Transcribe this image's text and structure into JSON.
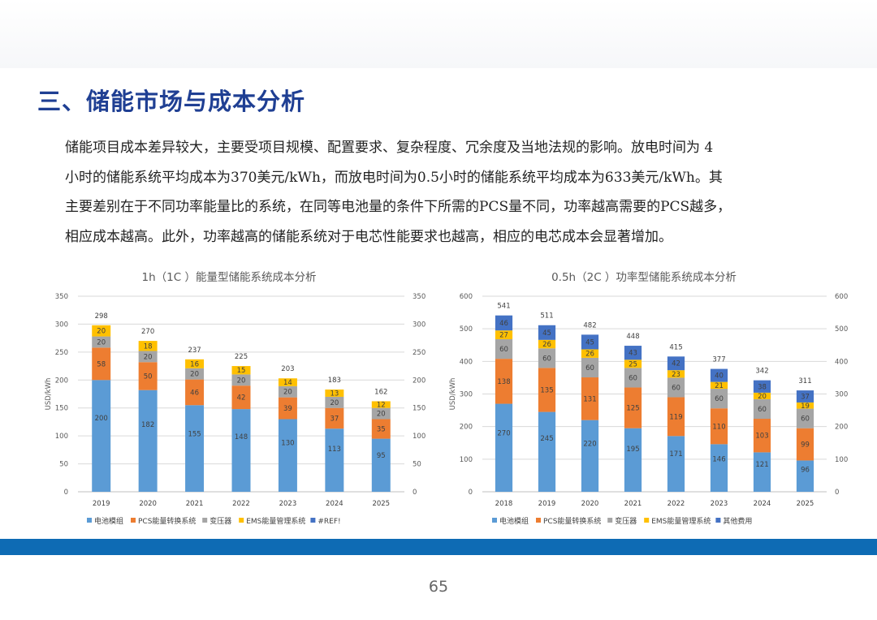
{
  "heading": "三、储能市场与成本分析",
  "paragraph": [
    "储能项目成本差异较大，主要受项目规模、配置要求、复杂程度、冗余度及当地法规的影响。放电时间为 4",
    "小时的储能系统平均成本为370美元/kWh，而放电时间为0.5小时的储能系统平均成本为633美元/kWh。其",
    "主要差别在于不同功率能量比的系统，在同等电池量的条件下所需的PCS量不同，功率越高需要的PCS越多，",
    "相应成本越高。此外，功率越高的储能系统对于电芯性能要求也越高，相应的电芯成本会显著增加。"
  ],
  "page_number": "65",
  "chart_data": [
    {
      "type": "bar",
      "stacked": true,
      "title": "1h（1C ）能量型储能系统成本分析",
      "ylabel": "USD/kWh",
      "ylim": [
        0,
        350
      ],
      "yticks": [
        0,
        50,
        100,
        150,
        200,
        250,
        300,
        350
      ],
      "secondary_axis": true,
      "grid": true,
      "legend": "bottom",
      "categories": [
        "2019",
        "2020",
        "2021",
        "2022",
        "2023",
        "2024",
        "2025"
      ],
      "series": [
        {
          "name": "电池模组",
          "color": "#5b9bd5",
          "values": [
            200,
            182,
            155,
            148,
            130,
            113,
            95
          ]
        },
        {
          "name": "PCS能量转换系统",
          "color": "#ed7d31",
          "values": [
            58,
            50,
            46,
            42,
            39,
            37,
            35
          ]
        },
        {
          "name": "变压器",
          "color": "#a5a5a5",
          "values": [
            20,
            20,
            20,
            20,
            20,
            20,
            20
          ]
        },
        {
          "name": "EMS能量管理系统",
          "color": "#ffc000",
          "values": [
            20,
            18,
            16,
            15,
            14,
            13,
            12
          ]
        },
        {
          "name": "#REF!",
          "color": "#4472c4",
          "values": [
            0,
            0,
            0,
            0,
            0,
            0,
            0
          ]
        }
      ],
      "totals": [
        298,
        270,
        237,
        225,
        203,
        183,
        162
      ]
    },
    {
      "type": "bar",
      "stacked": true,
      "title": "0.5h（2C ）功率型储能系统成本分析",
      "ylabel": "USD/kWh",
      "ylim": [
        0,
        600
      ],
      "yticks": [
        0,
        100,
        200,
        300,
        400,
        500,
        600
      ],
      "secondary_axis": true,
      "grid": true,
      "legend": "bottom",
      "categories": [
        "2018",
        "2019",
        "2020",
        "2021",
        "2022",
        "2023",
        "2024",
        "2025"
      ],
      "series": [
        {
          "name": "电池模组",
          "color": "#5b9bd5",
          "values": [
            270,
            245,
            220,
            195,
            171,
            146,
            121,
            96
          ]
        },
        {
          "name": "PCS能量转换系统",
          "color": "#ed7d31",
          "values": [
            138,
            135,
            131,
            125,
            119,
            110,
            103,
            99
          ]
        },
        {
          "name": "变压器",
          "color": "#a5a5a5",
          "values": [
            60,
            60,
            60,
            60,
            60,
            60,
            60,
            60
          ]
        },
        {
          "name": "EMS能量管理系统",
          "color": "#ffc000",
          "values": [
            27,
            26,
            26,
            25,
            23,
            21,
            20,
            19
          ]
        },
        {
          "name": "其他费用",
          "color": "#4472c4",
          "values": [
            46,
            45,
            45,
            43,
            42,
            40,
            38,
            37
          ]
        }
      ],
      "totals": [
        541,
        511,
        482,
        448,
        415,
        377,
        342,
        311
      ]
    }
  ]
}
